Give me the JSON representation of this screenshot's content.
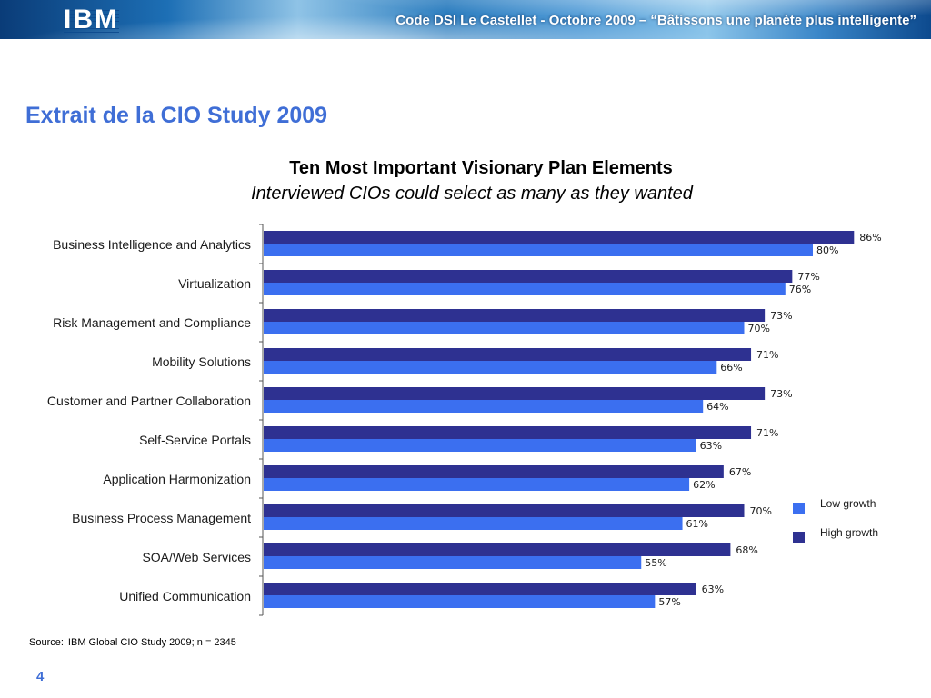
{
  "header": {
    "logo": "IBM",
    "banner_text": "Code DSI Le Castellet - Octobre 2009 – “Bâtissons une planète plus intelligente”"
  },
  "slide_title": "Extrait de la CIO Study 2009",
  "chart_data": {
    "type": "bar",
    "orientation": "horizontal",
    "title": "Ten Most Important Visionary Plan Elements",
    "subtitle": "Interviewed CIOs could select as many as they wanted",
    "categories": [
      "Business Intelligence and Analytics",
      "Virtualization",
      "Risk Management and Compliance",
      "Mobility Solutions",
      "Customer and Partner Collaboration",
      "Self-Service Portals",
      "Application Harmonization",
      "Business Process Management",
      "SOA/Web Services",
      "Unified Communication"
    ],
    "series": [
      {
        "name": "High growth",
        "color": "#2e3191",
        "values": [
          86,
          77,
          73,
          71,
          73,
          71,
          67,
          70,
          68,
          63
        ],
        "labels": [
          "86%",
          "77%",
          "73%",
          "71%",
          "73%",
          "71%",
          "67%",
          "70%",
          "68%",
          "63%"
        ]
      },
      {
        "name": "Low growth",
        "color": "#3b6ff0",
        "values": [
          80,
          76,
          70,
          66,
          64,
          63,
          62,
          61,
          55,
          57
        ],
        "labels": [
          "80%",
          "76%",
          "70%",
          "66%",
          "64%",
          "63%",
          "62%",
          "61%",
          "55%",
          "57%"
        ]
      }
    ],
    "xlim": [
      0,
      100
    ],
    "grid": false,
    "legend_position": "right"
  },
  "legend": {
    "items": [
      {
        "label": "Low growth",
        "color": "#3b6ff0"
      },
      {
        "label": "High growth",
        "color": "#2e3191"
      }
    ]
  },
  "source": {
    "label": "Source:",
    "text": "IBM Global CIO Study 2009; n = 2345"
  },
  "page_number": "4"
}
